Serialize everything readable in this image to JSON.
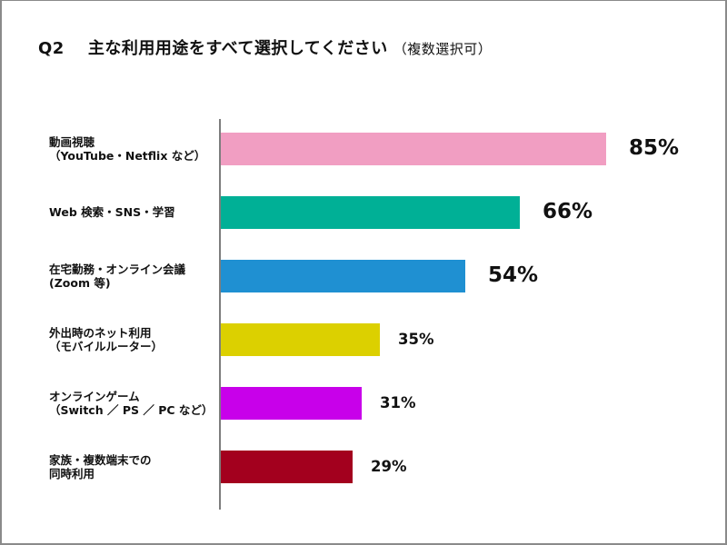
{
  "header": {
    "question_no": "Q2",
    "title": "主な利用用途をすべて選択してください",
    "subtitle": "（複数選択可）"
  },
  "chart_data": {
    "type": "bar",
    "orientation": "horizontal",
    "title": "Q2 主な利用用途をすべて選択してください（複数選択可）",
    "xlabel": "",
    "ylabel": "",
    "categories": [
      "動画視聴（YouTube・Netflix など）",
      "Web 検索・SNS・学習",
      "在宅勤務・オンライン会議（Zoom 等）",
      "外出時のネット利用（モバイルルーター）",
      "オンラインゲーム（Switch ／ PS ／ PC など）",
      "家族・複数端末での同時利用"
    ],
    "values": [
      85,
      66,
      54,
      35,
      31,
      29
    ],
    "unit": "%",
    "xlim": [
      0,
      100
    ],
    "grid": false,
    "legend": "none",
    "colors": [
      "#f19ec2",
      "#00b096",
      "#1f90d2",
      "#dcd000",
      "#c800ea",
      "#a3001e"
    ]
  },
  "rows": [
    {
      "line1": "動画視聴",
      "line2": "（YouTube・Netflix など）",
      "value": 85,
      "label": "85%",
      "color": "#f19ec2",
      "size": "big"
    },
    {
      "line1": "Web 検索・SNS・学習",
      "line2": "",
      "value": 66,
      "label": "66%",
      "color": "#00b096",
      "size": "big"
    },
    {
      "line1": "在宅勤務・オンライン会議",
      "line2": "(Zoom 等)",
      "value": 54,
      "label": "54%",
      "color": "#1f90d2",
      "size": "big"
    },
    {
      "line1": "外出時のネット利用",
      "line2": "（モバイルルーター）",
      "value": 35,
      "label": "35%",
      "color": "#dcd000",
      "size": "small"
    },
    {
      "line1": "オンラインゲーム",
      "line2": "（Switch ／ PS ／ PC など）",
      "value": 31,
      "label": "31%",
      "color": "#c800ea",
      "size": "small"
    },
    {
      "line1": "家族・複数端末での",
      "line2": "同時利用",
      "value": 29,
      "label": "29%",
      "color": "#a3001e",
      "size": "small"
    }
  ]
}
